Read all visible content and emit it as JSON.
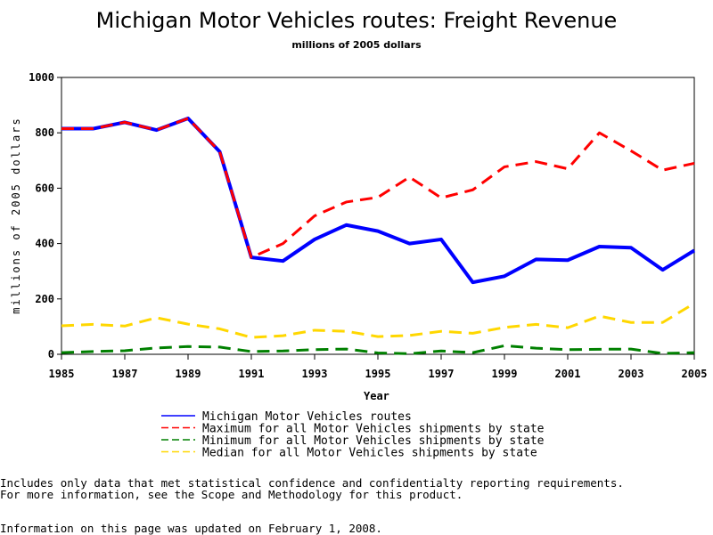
{
  "chart_data": {
    "type": "line",
    "title": "Michigan Motor Vehicles routes: Freight Revenue",
    "subtitle": "millions of 2005 dollars",
    "xlabel": "Year",
    "ylabel": "millions of 2005 dollars",
    "xlim": [
      1985,
      2005
    ],
    "ylim": [
      0,
      1000
    ],
    "grid": false,
    "legend_position": "bottom",
    "x": [
      1985,
      1986,
      1987,
      1988,
      1989,
      1990,
      1991,
      1992,
      1993,
      1994,
      1995,
      1996,
      1997,
      1998,
      1999,
      2000,
      2001,
      2002,
      2003,
      2004,
      2005
    ],
    "x_ticks": [
      "1985",
      "1987",
      "1989",
      "1991",
      "1993",
      "1995",
      "1997",
      "1999",
      "2001",
      "2003",
      "2005"
    ],
    "y_ticks": [
      "0",
      "200",
      "400",
      "600",
      "800",
      "1000"
    ],
    "series": [
      {
        "name": "Michigan Motor Vehicles routes",
        "color": "#0000ff",
        "style": "solid",
        "values": [
          815,
          815,
          838,
          810,
          852,
          732,
          350,
          337,
          415,
          467,
          445,
          400,
          415,
          260,
          282,
          343,
          340,
          389,
          385,
          305,
          375
        ]
      },
      {
        "name": "Maximum for all Motor Vehicles shipments by state",
        "color": "#ff0000",
        "style": "dashed",
        "values": [
          815,
          815,
          838,
          810,
          852,
          732,
          350,
          400,
          500,
          550,
          567,
          640,
          565,
          594,
          677,
          696,
          670,
          800,
          735,
          665,
          690
        ]
      },
      {
        "name": "Minimum for all Motor Vehicles shipments by state",
        "color": "#008000",
        "style": "dashed",
        "values": [
          6,
          10,
          13,
          23,
          28,
          26,
          10,
          12,
          17,
          19,
          5,
          2,
          12,
          6,
          31,
          22,
          17,
          18,
          19,
          3,
          6
        ]
      },
      {
        "name": "Median for all Motor Vehicles shipments by state",
        "color": "#ffd700",
        "style": "dashed",
        "values": [
          103,
          108,
          102,
          132,
          109,
          92,
          61,
          67,
          87,
          83,
          64,
          68,
          83,
          76,
          97,
          108,
          96,
          138,
          115,
          115,
          184
        ]
      }
    ]
  },
  "footnotes": {
    "line1": "Includes only data that met statistical confidence and confidentialty reporting requirements.",
    "line2": "For more information, see the Scope and Methodology for this product.",
    "updated": "Information on this page was updated on February 1, 2008."
  }
}
